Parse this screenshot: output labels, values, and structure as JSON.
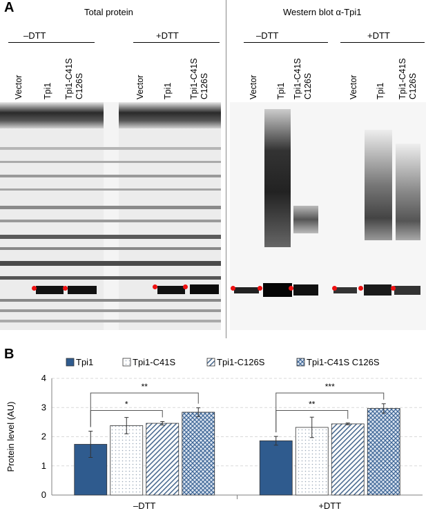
{
  "panels": {
    "A": "A",
    "B": "B"
  },
  "panelA": {
    "left_title": "Total protein",
    "right_title": "Western blot α-Tpi1",
    "conditions": [
      "–DTT",
      "+DTT"
    ],
    "lanes": [
      "Vector",
      "Tpi1",
      "Tpi1-C41S C126S"
    ]
  },
  "colors": {
    "tpi1": "#2f5b8e",
    "marker": "#ee1111",
    "axis": "#7f7f7f",
    "grid": "#d9d9d9"
  },
  "chart_data": {
    "type": "bar",
    "categories": [
      "–DTT",
      "+DTT"
    ],
    "ylabel": "Protein level (AU)",
    "xlabel": "",
    "ylim": [
      0,
      4
    ],
    "yticks": [
      0,
      1,
      2,
      3,
      4
    ],
    "grid": true,
    "legend_position": "top",
    "series": [
      {
        "name": "Tpi1",
        "pattern": "solid",
        "values": [
          1.74,
          1.86
        ],
        "errors": [
          0.45,
          0.15
        ]
      },
      {
        "name": "Tpi1-C41S",
        "pattern": "dots",
        "values": [
          2.38,
          2.32
        ],
        "errors": [
          0.28,
          0.35
        ]
      },
      {
        "name": "Tpi1-C126S",
        "pattern": "diagonal",
        "values": [
          2.46,
          2.44
        ],
        "errors": [
          0.06,
          0.03
        ]
      },
      {
        "name": "Tpi1-C41S C126S",
        "pattern": "crosshatch",
        "values": [
          2.84,
          2.97
        ],
        "errors": [
          0.15,
          0.16
        ]
      }
    ],
    "significance": [
      {
        "group": 0,
        "from_series": 0,
        "to_series": 3,
        "label": "**"
      },
      {
        "group": 0,
        "from_series": 0,
        "to_series": 2,
        "label": "*"
      },
      {
        "group": 1,
        "from_series": 0,
        "to_series": 3,
        "label": "***"
      },
      {
        "group": 1,
        "from_series": 0,
        "to_series": 2,
        "label": "**"
      }
    ]
  }
}
